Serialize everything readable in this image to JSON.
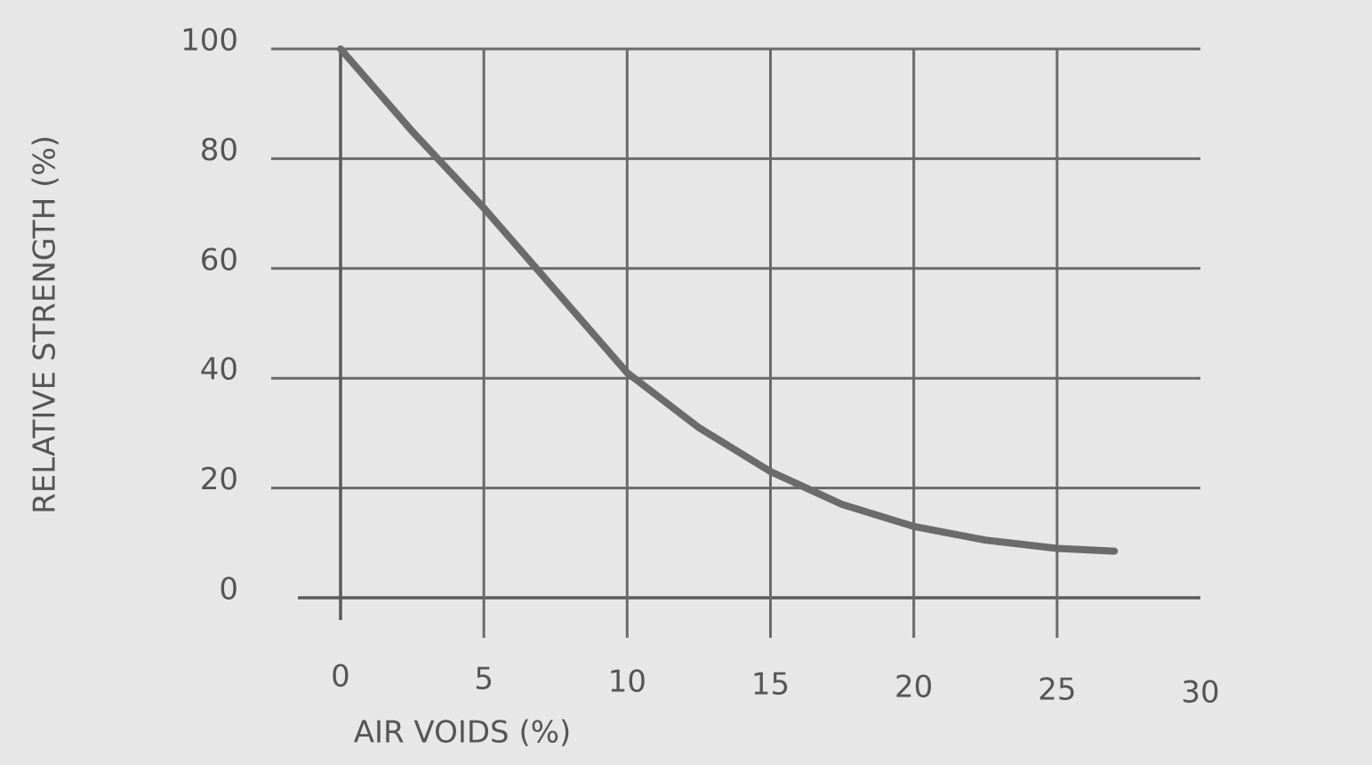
{
  "chart_data": {
    "type": "line",
    "xlabel": "AIR VOIDS (%)",
    "ylabel": "RELATIVE STRENGTH (%)",
    "x": [
      0,
      2.5,
      5,
      7.5,
      10,
      12.5,
      15,
      17.5,
      20,
      22.5,
      25,
      27
    ],
    "values": [
      100,
      85,
      71,
      56,
      41,
      31,
      23,
      17,
      13,
      10.5,
      9,
      8.5
    ],
    "color": "#6b6b6b",
    "xlim": [
      0,
      30
    ],
    "xticks": [
      0,
      5,
      10,
      15,
      20,
      25,
      30
    ],
    "ylim": [
      0,
      100
    ],
    "yticks": [
      0,
      20,
      40,
      60,
      80,
      100
    ],
    "grid": true
  }
}
